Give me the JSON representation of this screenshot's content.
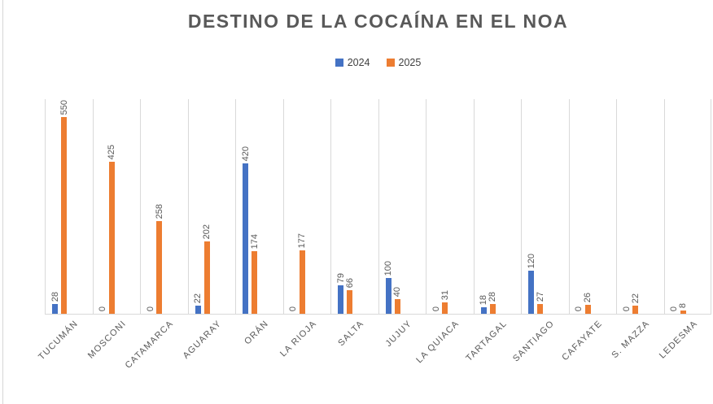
{
  "chart_data": {
    "type": "bar",
    "title": "DESTINO DE LA COCAÍNA EN EL NOA",
    "categories": [
      "TUCUMÁN",
      "MOSCONI",
      "CATAMARCA",
      "AGUARAY",
      "ORÁN",
      "LA RIOJA",
      "SALTA",
      "JUJUY",
      "LA QUIACA",
      "TARTAGAL",
      "SANTIAGO",
      "CAFAYATE",
      "S. MAZZA",
      "LEDESMA"
    ],
    "series": [
      {
        "name": "2024",
        "color": "#4472C4",
        "values": [
          28,
          0,
          0,
          22,
          420,
          0,
          79,
          100,
          0,
          18,
          120,
          0,
          0,
          0
        ]
      },
      {
        "name": "2025",
        "color": "#ED7D31",
        "values": [
          550,
          425,
          258,
          202,
          174,
          177,
          66,
          40,
          31,
          28,
          27,
          26,
          22,
          8
        ]
      }
    ],
    "xlabel": "",
    "ylabel": "",
    "ylim": [
      0,
      600
    ],
    "y_axis_visible": false,
    "gridlines": "vertical-between-categories",
    "gridline_color": "#D9D9D9",
    "data_labels": "rotated-90-above-bars",
    "data_label_color": "#595959",
    "category_label_rotation": 45,
    "legend_position": "top-center",
    "title_color": "#595959"
  }
}
